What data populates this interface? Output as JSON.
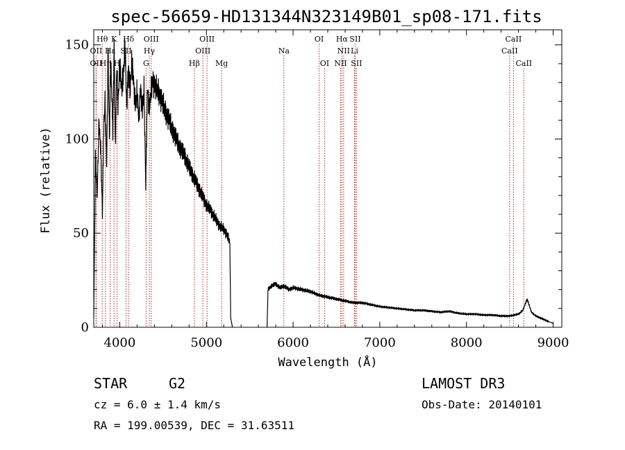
{
  "chart_data": {
    "type": "line",
    "title": "spec-56659-HD131344N323149B01_sp08-171.fits",
    "xlabel": "Wavelength (Å)",
    "ylabel": "Flux (relative)",
    "xlim": [
      3700,
      9100
    ],
    "ylim": [
      0,
      158
    ],
    "x_ticks": [
      4000,
      5000,
      6000,
      7000,
      8000,
      9000
    ],
    "x_tick_labels": [
      "4000",
      "5000",
      "6000",
      "7000",
      "8000",
      "9000"
    ],
    "y_ticks": [
      0,
      50,
      100,
      150
    ],
    "y_tick_labels": [
      "0",
      "50",
      "100",
      "150"
    ],
    "grid": false,
    "series": [
      {
        "name": "spectrum",
        "segments": [
          {
            "x": [
              3700,
              3720,
              3740,
              3760,
              3780,
              3800,
              3815,
              3830,
              3850,
              3865,
              3880,
              3895,
              3905,
              3920,
              3935,
              3950,
              3965,
              3980,
              4000,
              4020,
              4040,
              4060,
              4080,
              4100,
              4120,
              4140,
              4160,
              4180,
              4200,
              4220,
              4240,
              4260,
              4280,
              4300,
              4320,
              4340,
              4360,
              4380,
              4400,
              4450,
              4500,
              4550,
              4600,
              4650,
              4700,
              4750,
              4800,
              4850,
              4900,
              4950,
              5000,
              5050,
              5100,
              5150,
              5200,
              5240,
              5270,
              5280,
              5300
            ],
            "y": [
              5,
              92,
              70,
              110,
              95,
              60,
              105,
              120,
              85,
              150,
              100,
              140,
              128,
              105,
              150,
              95,
              140,
              118,
              140,
              128,
              132,
              150,
              118,
              138,
              125,
              142,
              130,
              118,
              125,
              110,
              128,
              115,
              126,
              75,
              128,
              115,
              125,
              132,
              128,
              125,
              118,
              112,
              106,
              100,
              95,
              91,
              85,
              80,
              75,
              70,
              65,
              62,
              58,
              54,
              52,
              49,
              45,
              5,
              0
            ]
          },
          {
            "x": [
              5700,
              5710,
              5750,
              5800,
              5850,
              5900,
              5950,
              6000,
              6100,
              6200,
              6300,
              6400,
              6500,
              6600,
              6700,
              6800,
              6900,
              7000,
              7100,
              7200,
              7300,
              7400,
              7500,
              7600,
              7700,
              7800,
              7900,
              8000,
              8100,
              8200,
              8300,
              8400,
              8500,
              8600,
              8650,
              8700,
              8750,
              8800,
              8850,
              8900,
              8950,
              9000
            ],
            "y": [
              0,
              20,
              22,
              23,
              21,
              22,
              20,
              21,
              20,
              19,
              17,
              16,
              15,
              14,
              13,
              13,
              12,
              11,
              10.5,
              10,
              9.5,
              9,
              9,
              8.5,
              8,
              8.5,
              7.5,
              7,
              7,
              6.5,
              6.5,
              6,
              6,
              7,
              9,
              15,
              8,
              6,
              5,
              4,
              3,
              2
            ]
          }
        ]
      }
    ],
    "spectral_lines": [
      {
        "label": "Hθ",
        "wavelength": 3798,
        "row": 1
      },
      {
        "label": "OII",
        "wavelength": 3727,
        "row": 2
      },
      {
        "label": "OII",
        "wavelength": 3727,
        "row": 3
      },
      {
        "label": "Hη",
        "wavelength": 3835,
        "row": 3
      },
      {
        "label": "Hε",
        "wavelength": 3889,
        "row": 2
      },
      {
        "label": "K",
        "wavelength": 3934,
        "row": 1
      },
      {
        "label": "H",
        "wavelength": 3969,
        "row": 3
      },
      {
        "label": "SII",
        "wavelength": 4072,
        "row": 2
      },
      {
        "label": "Hδ",
        "wavelength": 4102,
        "row": 1
      },
      {
        "label": "OIII",
        "wavelength": 4363,
        "row": 1
      },
      {
        "label": "Hγ",
        "wavelength": 4341,
        "row": 2
      },
      {
        "label": "G",
        "wavelength": 4304,
        "row": 3
      },
      {
        "label": "Hβ",
        "wavelength": 4861,
        "row": 3
      },
      {
        "label": "OIII",
        "wavelength": 5007,
        "row": 1
      },
      {
        "label": "OIII",
        "wavelength": 4959,
        "row": 2
      },
      {
        "label": "Mg",
        "wavelength": 5175,
        "row": 3
      },
      {
        "label": "Na",
        "wavelength": 5894,
        "row": 2
      },
      {
        "label": "OI",
        "wavelength": 6300,
        "row": 1
      },
      {
        "label": "OI",
        "wavelength": 6363,
        "row": 3
      },
      {
        "label": "Hα",
        "wavelength": 6563,
        "row": 1
      },
      {
        "label": "SII",
        "wavelength": 6716,
        "row": 1
      },
      {
        "label": "NII",
        "wavelength": 6583,
        "row": 2
      },
      {
        "label": "Li",
        "wavelength": 6708,
        "row": 2
      },
      {
        "label": "NII",
        "wavelength": 6548,
        "row": 3
      },
      {
        "label": "SII",
        "wavelength": 6731,
        "row": 3
      },
      {
        "label": "CaII",
        "wavelength": 8542,
        "row": 1
      },
      {
        "label": "CaII",
        "wavelength": 8498,
        "row": 2
      },
      {
        "label": "CaII",
        "wavelength": 8662,
        "row": 3
      }
    ]
  },
  "info": {
    "object_type": "STAR",
    "subclass": "G2",
    "cz": "cz = 6.0 ± 1.4 km/s",
    "coords": "RA = 199.00539, DEC =  31.63511",
    "survey": "LAMOST DR3",
    "obs_date": "Obs-Date: 20140101"
  },
  "colors": {
    "spectrum": "#000000",
    "line_markers": "#b22222",
    "axes": "#000000"
  }
}
